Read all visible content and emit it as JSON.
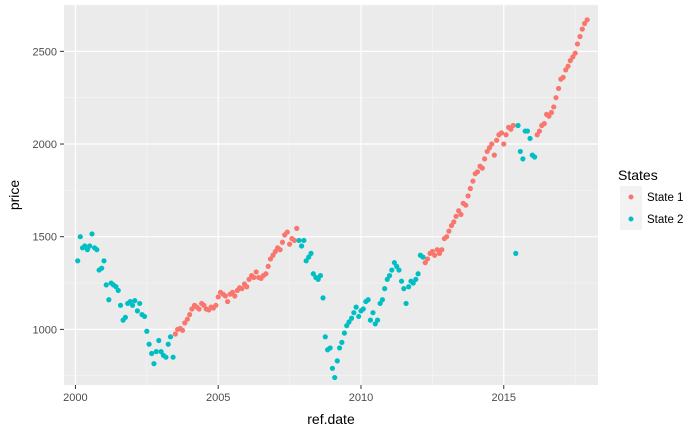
{
  "chart_data": {
    "type": "scatter",
    "xlabel": "ref.date",
    "ylabel": "price",
    "xlim": [
      1999.6,
      2018.3
    ],
    "ylim": [
      700,
      2750
    ],
    "x_ticks": [
      2000,
      2005,
      2010,
      2015
    ],
    "y_ticks": [
      1000,
      1500,
      2000,
      2500
    ],
    "grid": true,
    "legend": {
      "title": "States",
      "position": "right",
      "entries": [
        "State 1",
        "State 2"
      ]
    },
    "colors": {
      "State 1": "#f8766d",
      "State 2": "#00bfc4",
      "panel": "#ebebeb",
      "grid": "#ffffff"
    },
    "series": [
      {
        "name": "State 1",
        "x": [
          2003.5,
          2003.58,
          2003.67,
          2003.75,
          2003.83,
          2003.92,
          2004.0,
          2004.08,
          2004.17,
          2004.25,
          2004.33,
          2004.42,
          2004.5,
          2004.58,
          2004.67,
          2004.75,
          2004.83,
          2004.92,
          2005.0,
          2005.08,
          2005.17,
          2005.25,
          2005.33,
          2005.42,
          2005.5,
          2005.58,
          2005.67,
          2005.75,
          2005.83,
          2005.92,
          2006.0,
          2006.08,
          2006.17,
          2006.25,
          2006.33,
          2006.42,
          2006.5,
          2006.58,
          2006.67,
          2006.75,
          2006.83,
          2006.92,
          2007.0,
          2007.08,
          2007.17,
          2007.25,
          2007.33,
          2007.42,
          2007.5,
          2007.58,
          2007.67,
          2007.75,
          2012.25,
          2012.33,
          2012.42,
          2012.5,
          2012.58,
          2012.67,
          2012.75,
          2012.83,
          2012.92,
          2013.0,
          2013.08,
          2013.17,
          2013.25,
          2013.33,
          2013.42,
          2013.5,
          2013.58,
          2013.67,
          2013.75,
          2013.83,
          2013.92,
          2014.0,
          2014.08,
          2014.17,
          2014.25,
          2014.33,
          2014.42,
          2014.5,
          2014.58,
          2014.67,
          2014.75,
          2014.83,
          2014.92,
          2015.0,
          2015.08,
          2015.17,
          2015.25,
          2015.33,
          2016.17,
          2016.25,
          2016.33,
          2016.42,
          2016.5,
          2016.58,
          2016.67,
          2016.75,
          2016.83,
          2016.92,
          2017.0,
          2017.08,
          2017.17,
          2017.25,
          2017.33,
          2017.42,
          2017.5,
          2017.58,
          2017.67,
          2017.75,
          2017.83,
          2017.92
        ],
        "y": [
          975,
          1000,
          1005,
          995,
          1035,
          1055,
          1080,
          1110,
          1130,
          1120,
          1110,
          1140,
          1130,
          1110,
          1105,
          1120,
          1115,
          1130,
          1175,
          1200,
          1190,
          1180,
          1150,
          1190,
          1200,
          1180,
          1210,
          1225,
          1220,
          1245,
          1230,
          1270,
          1290,
          1280,
          1310,
          1280,
          1275,
          1290,
          1300,
          1340,
          1380,
          1400,
          1420,
          1440,
          1430,
          1470,
          1510,
          1525,
          1460,
          1490,
          1480,
          1545,
          1360,
          1380,
          1410,
          1420,
          1400,
          1430,
          1410,
          1430,
          1490,
          1500,
          1530,
          1560,
          1580,
          1610,
          1640,
          1620,
          1680,
          1670,
          1720,
          1760,
          1800,
          1840,
          1850,
          1880,
          1870,
          1920,
          1960,
          1980,
          2000,
          1940,
          2020,
          2050,
          2060,
          2000,
          2050,
          2090,
          2080,
          2100,
          2050,
          2070,
          2100,
          2110,
          2160,
          2150,
          2170,
          2200,
          2250,
          2300,
          2350,
          2360,
          2400,
          2420,
          2450,
          2470,
          2490,
          2540,
          2580,
          2620,
          2650,
          2670
        ]
      },
      {
        "name": "State 2",
        "x": [
          2000.08,
          2000.17,
          2000.25,
          2000.33,
          2000.42,
          2000.5,
          2000.58,
          2000.67,
          2000.75,
          2000.83,
          2000.92,
          2001.0,
          2001.08,
          2001.17,
          2001.25,
          2001.33,
          2001.42,
          2001.5,
          2001.58,
          2001.67,
          2001.75,
          2001.83,
          2001.92,
          2002.0,
          2002.08,
          2002.17,
          2002.25,
          2002.33,
          2002.42,
          2002.5,
          2002.58,
          2002.67,
          2002.75,
          2002.83,
          2002.92,
          2003.0,
          2003.08,
          2003.17,
          2003.25,
          2003.33,
          2003.42,
          2007.83,
          2007.92,
          2008.0,
          2008.08,
          2008.17,
          2008.25,
          2008.33,
          2008.42,
          2008.5,
          2008.58,
          2008.67,
          2008.75,
          2008.83,
          2008.92,
          2009.0,
          2009.08,
          2009.17,
          2009.25,
          2009.33,
          2009.42,
          2009.5,
          2009.58,
          2009.67,
          2009.75,
          2009.83,
          2009.92,
          2010.0,
          2010.08,
          2010.17,
          2010.25,
          2010.33,
          2010.42,
          2010.5,
          2010.58,
          2010.67,
          2010.75,
          2010.83,
          2010.92,
          2011.0,
          2011.08,
          2011.17,
          2011.25,
          2011.33,
          2011.42,
          2011.5,
          2011.58,
          2011.67,
          2011.75,
          2011.83,
          2011.92,
          2012.0,
          2012.08,
          2012.17,
          2015.42,
          2015.5,
          2015.58,
          2015.67,
          2015.75,
          2015.83,
          2015.92,
          2016.0,
          2016.08
        ],
        "y": [
          1370,
          1500,
          1440,
          1450,
          1430,
          1450,
          1515,
          1440,
          1430,
          1320,
          1330,
          1370,
          1240,
          1160,
          1250,
          1240,
          1230,
          1210,
          1130,
          1050,
          1065,
          1140,
          1150,
          1130,
          1155,
          1100,
          1140,
          1080,
          1070,
          990,
          920,
          870,
          815,
          880,
          940,
          880,
          860,
          850,
          920,
          960,
          850,
          1480,
          1450,
          1480,
          1370,
          1390,
          1410,
          1300,
          1280,
          1270,
          1290,
          1170,
          960,
          890,
          900,
          790,
          740,
          830,
          900,
          930,
          980,
          1020,
          1040,
          1060,
          1090,
          1120,
          1070,
          1100,
          1110,
          1150,
          1160,
          1050,
          1090,
          1030,
          1050,
          1140,
          1160,
          1220,
          1270,
          1290,
          1320,
          1360,
          1340,
          1320,
          1260,
          1220,
          1140,
          1230,
          1260,
          1250,
          1270,
          1300,
          1400,
          1390,
          1410,
          2100,
          1960,
          1920,
          2070,
          2070,
          2030,
          1940,
          1930
        ]
      }
    ]
  }
}
